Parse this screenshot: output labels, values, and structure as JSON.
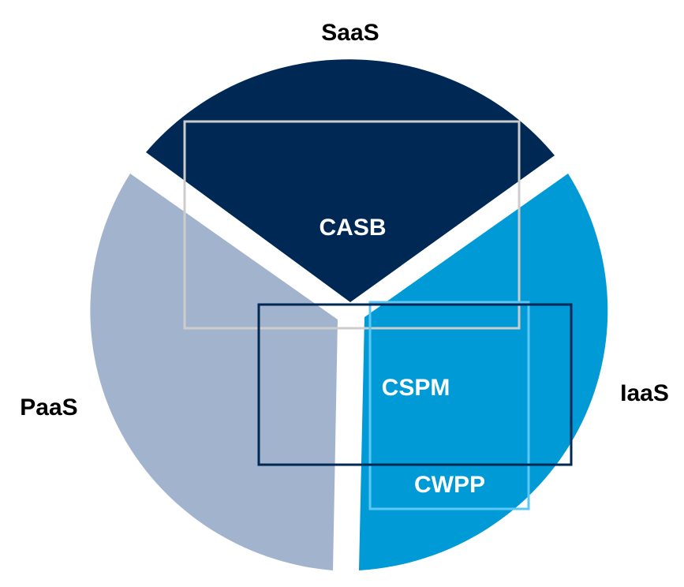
{
  "segments": [
    {
      "label": "SaaS",
      "color": "#002855"
    },
    {
      "label": "PaaS",
      "color": "#a2b4cd"
    },
    {
      "label": "IaaS",
      "color": "#009ad6"
    }
  ],
  "boxes": [
    {
      "label": "CASB",
      "stroke": "#cccccc"
    },
    {
      "label": "CSPM",
      "stroke": "#002855"
    },
    {
      "label": "CWPP",
      "stroke": "#5cc8f5"
    }
  ]
}
